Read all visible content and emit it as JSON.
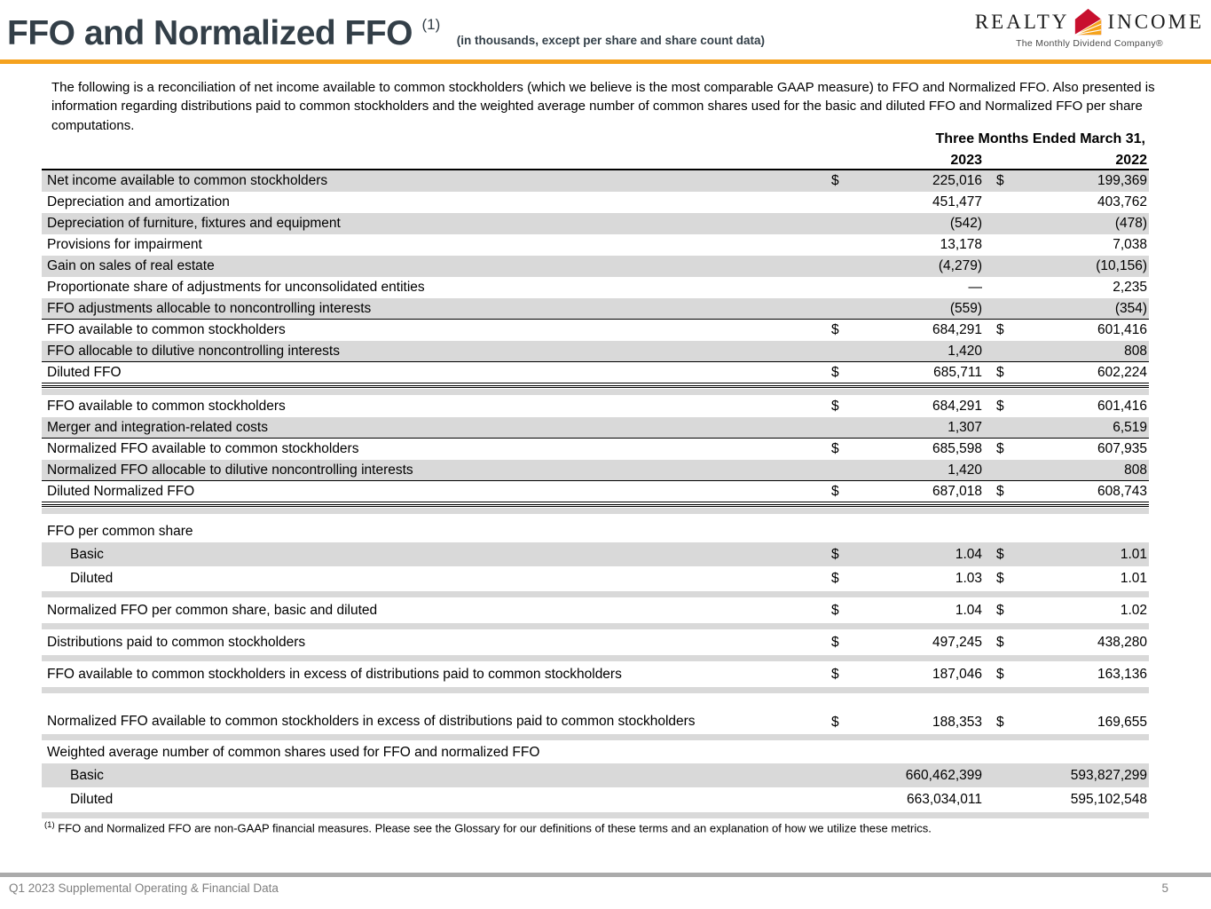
{
  "colors": {
    "accent": "#F5A21E",
    "title": "#333F48",
    "row_shading": "#D9D9D9",
    "footer_gray": "#808080",
    "logo_red": "#C8102E",
    "logo_gold": "#F5A31B"
  },
  "header": {
    "title": "FFO and Normalized FFO",
    "title_superscript": "(1)",
    "subtitle": "(in thousands, except per share and share count data)",
    "logo": {
      "word_left": "REALTY",
      "word_right": "INCOME",
      "tagline": "The Monthly Dividend Company®"
    }
  },
  "intro_paragraph": "The following is a reconciliation of net income available to common stockholders (which we believe is the most comparable GAAP measure) to FFO and Normalized FFO. Also presented is information regarding distributions paid to common stockholders and the weighted average number of common shares used for the basic and diluted FFO and Normalized FFO per share computations.",
  "table": {
    "period_header": "Three Months Ended March 31,",
    "col_2023": "2023",
    "col_2022": "2022",
    "rows": [
      {
        "type": "data",
        "label": "Net income available to common stockholders",
        "d1": "$",
        "v1": "225,016",
        "d2": "$",
        "v2": "199,369",
        "shaded": true
      },
      {
        "type": "data",
        "label": "Depreciation and amortization",
        "v1": "451,477",
        "v2": "403,762"
      },
      {
        "type": "data",
        "label": "Depreciation of furniture, fixtures and equipment",
        "v1": "(542)",
        "v2": "(478)",
        "shaded": true
      },
      {
        "type": "data",
        "label": "Provisions for impairment",
        "v1": "13,178",
        "v2": "7,038"
      },
      {
        "type": "data",
        "label": "Gain on sales of real estate",
        "v1": "(4,279)",
        "v2": "(10,156)",
        "shaded": true
      },
      {
        "type": "data",
        "label": "Proportionate share of adjustments for unconsolidated entities",
        "v1": "—",
        "v2": "2,235"
      },
      {
        "type": "data",
        "label": "FFO adjustments allocable to noncontrolling interests",
        "v1": "(559)",
        "v2": "(354)",
        "shaded": true,
        "rule": "single"
      },
      {
        "type": "data",
        "label": "FFO available to common stockholders",
        "d1": "$",
        "v1": "684,291",
        "d2": "$",
        "v2": "601,416"
      },
      {
        "type": "data",
        "label": "FFO allocable to dilutive noncontrolling interests",
        "v1": "1,420",
        "v2": "808",
        "shaded": true,
        "rule": "single"
      },
      {
        "type": "data",
        "label": "Diluted FFO",
        "d1": "$",
        "v1": "685,711",
        "d2": "$",
        "v2": "602,224",
        "rule": "total"
      },
      {
        "type": "spacer"
      },
      {
        "type": "data",
        "label": "FFO available to common stockholders",
        "d1": "$",
        "v1": "684,291",
        "d2": "$",
        "v2": "601,416"
      },
      {
        "type": "data",
        "label": "Merger and integration-related costs",
        "v1": "1,307",
        "v2": "6,519",
        "shaded": true,
        "rule": "single"
      },
      {
        "type": "data",
        "label": "Normalized FFO available to common stockholders",
        "d1": "$",
        "v1": "685,598",
        "d2": "$",
        "v2": "607,935"
      },
      {
        "type": "data",
        "label": "Normalized FFO allocable to dilutive noncontrolling interests",
        "v1": "1,420",
        "v2": "808",
        "shaded": true,
        "rule": "single"
      },
      {
        "type": "data",
        "label": "Diluted Normalized FFO",
        "d1": "$",
        "v1": "687,018",
        "d2": "$",
        "v2": "608,743",
        "rule": "total"
      },
      {
        "type": "spacer"
      },
      {
        "type": "gap"
      },
      {
        "type": "section",
        "label": "FFO per common share"
      },
      {
        "type": "data",
        "label": "Basic",
        "indent": true,
        "d1": "$",
        "v1": "1.04",
        "d2": "$",
        "v2": "1.01",
        "shaded": true,
        "tall": true
      },
      {
        "type": "data",
        "label": "Diluted",
        "indent": true,
        "d1": "$",
        "v1": "1.03",
        "d2": "$",
        "v2": "1.01",
        "tall": true
      },
      {
        "type": "spacer"
      },
      {
        "type": "data",
        "label": "Normalized FFO per common share, basic and diluted",
        "d1": "$",
        "v1": "1.04",
        "d2": "$",
        "v2": "1.02",
        "tall": true
      },
      {
        "type": "spacer"
      },
      {
        "type": "data",
        "label": "Distributions paid to common stockholders",
        "d1": "$",
        "v1": "497,245",
        "d2": "$",
        "v2": "438,280",
        "tall": true
      },
      {
        "type": "spacer"
      },
      {
        "type": "data",
        "label": "FFO available to common stockholders in excess of distributions paid to common stockholders",
        "d1": "$",
        "v1": "187,046",
        "d2": "$",
        "v2": "163,136",
        "tall": true
      },
      {
        "type": "spacer"
      },
      {
        "type": "data",
        "label": "Normalized FFO available to common stockholders in excess of distributions paid to common stockholders",
        "wrap": true,
        "d1": "$",
        "v1": "188,353",
        "d2": "$",
        "v2": "169,655"
      },
      {
        "type": "spacer"
      },
      {
        "type": "section",
        "label": "Weighted average number of common shares used for FFO and normalized FFO"
      },
      {
        "type": "data",
        "label": "Basic",
        "indent": true,
        "v1": "660,462,399",
        "v2": "593,827,299",
        "shaded": true,
        "tall": true
      },
      {
        "type": "data",
        "label": "Diluted",
        "indent": true,
        "v1": "663,034,011",
        "v2": "595,102,548",
        "tall": true
      },
      {
        "type": "spacer"
      }
    ]
  },
  "footnote": {
    "marker": "(1)",
    "text": "FFO and Normalized FFO are non-GAAP financial measures. Please see the Glossary for our definitions of these terms and an explanation of how we utilize these metrics."
  },
  "footer": {
    "left": "Q1 2023 Supplemental Operating & Financial Data",
    "page": "5"
  }
}
